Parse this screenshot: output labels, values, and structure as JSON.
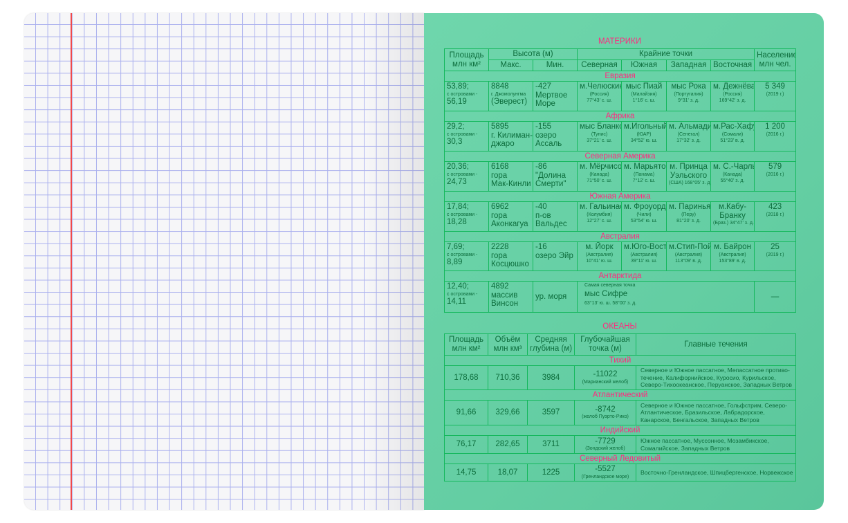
{
  "continents": {
    "title": "МАТЕРИКИ",
    "headers": {
      "area": [
        "Площадь",
        "млн км²"
      ],
      "height": "Высота (м)",
      "max": "Макс.",
      "min": "Мин.",
      "extreme": "Крайние точки",
      "north": "Северная",
      "south": "Южная",
      "west": "Западная",
      "east": "Восточная",
      "population": [
        "Население",
        "млн чел."
      ]
    },
    "rows": [
      {
        "name": "Евразия",
        "cells": [
          [
            {
              "text": "53,89;"
            },
            {
              "text": "с островами -",
              "small": true
            },
            {
              "text": "56,19"
            }
          ],
          [
            {
              "text": "8848"
            },
            {
              "text": "г. Джомолунгма",
              "small": true
            },
            {
              "text": "(Эверест)"
            }
          ],
          [
            {
              "text": "-427"
            },
            {
              "text": "Мертвое"
            },
            {
              "text": "Море"
            }
          ],
          [
            {
              "text": "м.Челюскин"
            },
            {
              "text": "(Россия)",
              "small": true
            },
            {
              "text": "77°43' с. ш.",
              "small": true
            }
          ],
          [
            {
              "text": "мыс Пиай"
            },
            {
              "text": "(Малайзия)",
              "small": true
            },
            {
              "text": "1°16' с. ш.",
              "small": true
            }
          ],
          [
            {
              "text": "мыс Рока"
            },
            {
              "text": "(Португалия)",
              "small": true
            },
            {
              "text": "9°31' з. д.",
              "small": true
            }
          ],
          [
            {
              "text": "м. Дежнёва"
            },
            {
              "text": "(Россия)",
              "small": true
            },
            {
              "text": "169°42' з. д.",
              "small": true
            }
          ],
          [
            {
              "text": "5 349"
            },
            {
              "text": "(2019 г.)",
              "small": true
            }
          ]
        ]
      },
      {
        "name": "Африка",
        "cells": [
          [
            {
              "text": "29,2;"
            },
            {
              "text": "с островами -",
              "small": true
            },
            {
              "text": "30,3"
            }
          ],
          [
            {
              "text": "5895"
            },
            {
              "text": "г. Килиман-"
            },
            {
              "text": "джаро"
            }
          ],
          [
            {
              "text": "-155"
            },
            {
              "text": "озеро"
            },
            {
              "text": "Ассаль"
            }
          ],
          [
            {
              "text": "мыс Бланко"
            },
            {
              "text": "(Тунис)",
              "small": true
            },
            {
              "text": "37°21' с. ш.",
              "small": true
            }
          ],
          [
            {
              "text": "м.Игольный"
            },
            {
              "text": "(ЮАР)",
              "small": true
            },
            {
              "text": "34°52' ю. ш.",
              "small": true
            }
          ],
          [
            {
              "text": "м. Альмади"
            },
            {
              "text": "(Сенегал)",
              "small": true
            },
            {
              "text": "17°32' з. д.",
              "small": true
            }
          ],
          [
            {
              "text": "м.Рас-Хафун"
            },
            {
              "text": "(Сомали)",
              "small": true
            },
            {
              "text": "51°23' в. д.",
              "small": true
            }
          ],
          [
            {
              "text": "1 200"
            },
            {
              "text": "(2016 г.)",
              "small": true
            }
          ]
        ]
      },
      {
        "name": "Северная Америка",
        "cells": [
          [
            {
              "text": "20,36;"
            },
            {
              "text": "с островами -",
              "small": true
            },
            {
              "text": "24,73"
            }
          ],
          [
            {
              "text": "6168"
            },
            {
              "text": "гора"
            },
            {
              "text": "Мак-Кинли"
            }
          ],
          [
            {
              "text": "-86"
            },
            {
              "text": "\"Долина"
            },
            {
              "text": "Смерти\""
            }
          ],
          [
            {
              "text": "м. Мёрчисон"
            },
            {
              "text": "(Канада)",
              "small": true
            },
            {
              "text": "71°50' с. ш.",
              "small": true
            }
          ],
          [
            {
              "text": "м. Марьято"
            },
            {
              "text": "(Панама)",
              "small": true
            },
            {
              "text": "7°12' с. ш.",
              "small": true
            }
          ],
          [
            {
              "text": "м. Принца"
            },
            {
              "text": "Уэльского"
            },
            {
              "text": "(США) 168°05' з. д.",
              "small": true
            }
          ],
          [
            {
              "text": "м. С.-Чарльз"
            },
            {
              "text": "(Канада)",
              "small": true
            },
            {
              "text": "55°40' з. д.",
              "small": true
            }
          ],
          [
            {
              "text": "579"
            },
            {
              "text": "(2016 г.)",
              "small": true
            }
          ]
        ]
      },
      {
        "name": "Южная Америка",
        "cells": [
          [
            {
              "text": "17,84;"
            },
            {
              "text": "с островами -",
              "small": true
            },
            {
              "text": "18,28"
            }
          ],
          [
            {
              "text": "6962"
            },
            {
              "text": "гора"
            },
            {
              "text": "Аконкагуа"
            }
          ],
          [
            {
              "text": "-40"
            },
            {
              "text": "п-ов"
            },
            {
              "text": "Вальдес"
            }
          ],
          [
            {
              "text": "м. Гальинас"
            },
            {
              "text": "(Колумбия)",
              "small": true
            },
            {
              "text": "12°27' с. ш.",
              "small": true
            }
          ],
          [
            {
              "text": "м. Фроуорд"
            },
            {
              "text": "(Чили)",
              "small": true
            },
            {
              "text": "53°54' ю. ш.",
              "small": true
            }
          ],
          [
            {
              "text": "м. Париньяс"
            },
            {
              "text": "(Перу)",
              "small": true
            },
            {
              "text": "81°20' з. д.",
              "small": true
            }
          ],
          [
            {
              "text": "м.Кабу-"
            },
            {
              "text": "Бранку"
            },
            {
              "text": "(Браз.) 34°47' з. д.",
              "small": true
            }
          ],
          [
            {
              "text": "423"
            },
            {
              "text": "(2018 г.)",
              "small": true
            }
          ]
        ]
      },
      {
        "name": "Австралия",
        "cells": [
          [
            {
              "text": "7,69;"
            },
            {
              "text": "с островами -",
              "small": true
            },
            {
              "text": "8,89"
            }
          ],
          [
            {
              "text": "2228"
            },
            {
              "text": "гора"
            },
            {
              "text": "Косцюшко"
            }
          ],
          [
            {
              "text": "-16"
            },
            {
              "text": "озеро Эйр"
            }
          ],
          [
            {
              "text": "м. Йорк"
            },
            {
              "text": "(Австралия)",
              "small": true
            },
            {
              "text": "10°41' ю. ш.",
              "small": true
            }
          ],
          [
            {
              "text": "м.Юго-Вост."
            },
            {
              "text": "(Австралия)",
              "small": true
            },
            {
              "text": "39°11' ю. ш.",
              "small": true
            }
          ],
          [
            {
              "text": "м.Стип-Пойнт"
            },
            {
              "text": "(Австралия)",
              "small": true
            },
            {
              "text": "113°09' в. д.",
              "small": true
            }
          ],
          [
            {
              "text": "м. Байрон"
            },
            {
              "text": "(Австралия)",
              "small": true
            },
            {
              "text": "153°89' в. д.",
              "small": true
            }
          ],
          [
            {
              "text": "25"
            },
            {
              "text": "(2019 г.)",
              "small": true
            }
          ]
        ]
      },
      {
        "name": "Антарктида",
        "cells": [
          [
            {
              "text": "12,40;"
            },
            {
              "text": "с островами -",
              "small": true
            },
            {
              "text": "14,11"
            }
          ],
          [
            {
              "text": "4892"
            },
            {
              "text": "массив"
            },
            {
              "text": "Винсон"
            }
          ],
          [
            {
              "text": "ур. моря"
            }
          ],
          [
            {
              "text": "Самая северная точка",
              "small": true
            },
            {
              "text": "мыс Сифре"
            },
            {
              "text": "63°13' ю. ш.     58°00' з. д.",
              "small": true
            }
          ],
          [
            {
              "text": "—"
            }
          ]
        ]
      }
    ]
  },
  "oceans": {
    "title": "ОКЕАНЫ",
    "headers": [
      [
        "Площадь",
        "млн км²"
      ],
      [
        "Объём",
        "млн км³"
      ],
      [
        "Средняя",
        "глубина (м)"
      ],
      [
        "Глубочайшая",
        "точка (м)"
      ],
      [
        "Главные течения"
      ]
    ],
    "rows": [
      {
        "name": "Тихий",
        "area": "178,68",
        "volume": "710,36",
        "depth": "3984",
        "deepest": "-11022",
        "deepest_place": "(Марианский желоб)",
        "currents": "Северное и Южное пассатное, Мепассатное противо-течение, Калифорнийское, Куросио, Курильское, Северо-Тихоокеанское, Перуанское, Западных Ветров"
      },
      {
        "name": "Атлантический",
        "area": "91,66",
        "volume": "329,66",
        "depth": "3597",
        "deepest": "-8742",
        "deepest_place": "(желоб Пуэрто-Рико)",
        "currents": "Северное и Южное пассатное, Гольфстрим, Северо-Атлантическое, Бразильское, Лабрадорское, Канарское, Бенгальское, Западных Ветров"
      },
      {
        "name": "Индийский",
        "area": "76,17",
        "volume": "282,65",
        "depth": "3711",
        "deepest": "-7729",
        "deepest_place": "(Зондский желоб)",
        "currents": "Южное пассатное, Муссонное, Мозамбикское, Сомалийское, Западных Ветров"
      },
      {
        "name": "Северный Ледовитый",
        "area": "14,75",
        "volume": "18,07",
        "depth": "1225",
        "deepest": "-5527",
        "deepest_place": "(Гренландское море)",
        "currents": "Восточно-Гренландское, Шпицбергенское, Норвежское"
      }
    ]
  },
  "colors": {
    "page_green": "#66cfa5",
    "border": "#15b85d",
    "text": "#0c6d3c",
    "category": "#ff2a7f",
    "grid": "#aab0ee",
    "margin_line": "#f0484b"
  }
}
